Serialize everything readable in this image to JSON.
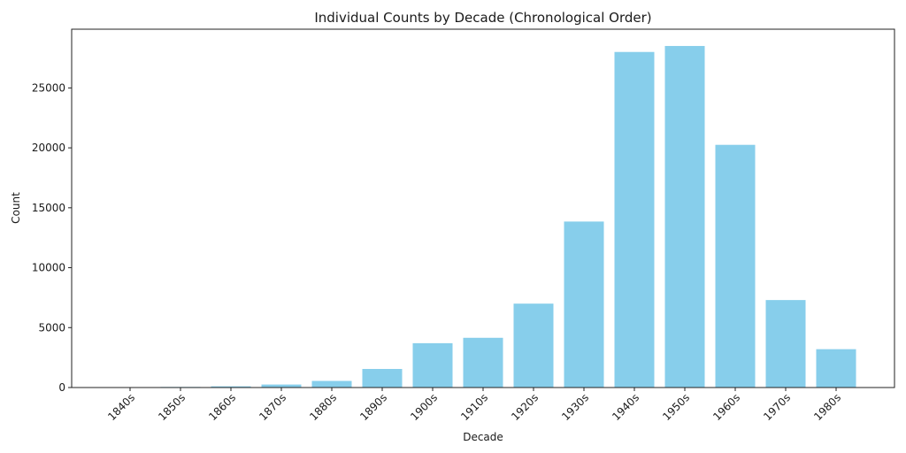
{
  "chart_data": {
    "type": "bar",
    "title": "Individual Counts by Decade (Chronological Order)",
    "xlabel": "Decade",
    "ylabel": "Count",
    "categories": [
      "1840s",
      "1850s",
      "1860s",
      "1870s",
      "1880s",
      "1890s",
      "1900s",
      "1910s",
      "1920s",
      "1930s",
      "1940s",
      "1950s",
      "1960s",
      "1970s",
      "1980s"
    ],
    "values": [
      30,
      50,
      100,
      250,
      550,
      1550,
      3700,
      4150,
      7000,
      13850,
      28000,
      28500,
      20250,
      7300,
      3200
    ],
    "ylim": [
      0,
      29900
    ],
    "yticks": [
      0,
      5000,
      10000,
      15000,
      20000,
      25000
    ],
    "bar_color": "#87ceeb",
    "grid": false
  }
}
